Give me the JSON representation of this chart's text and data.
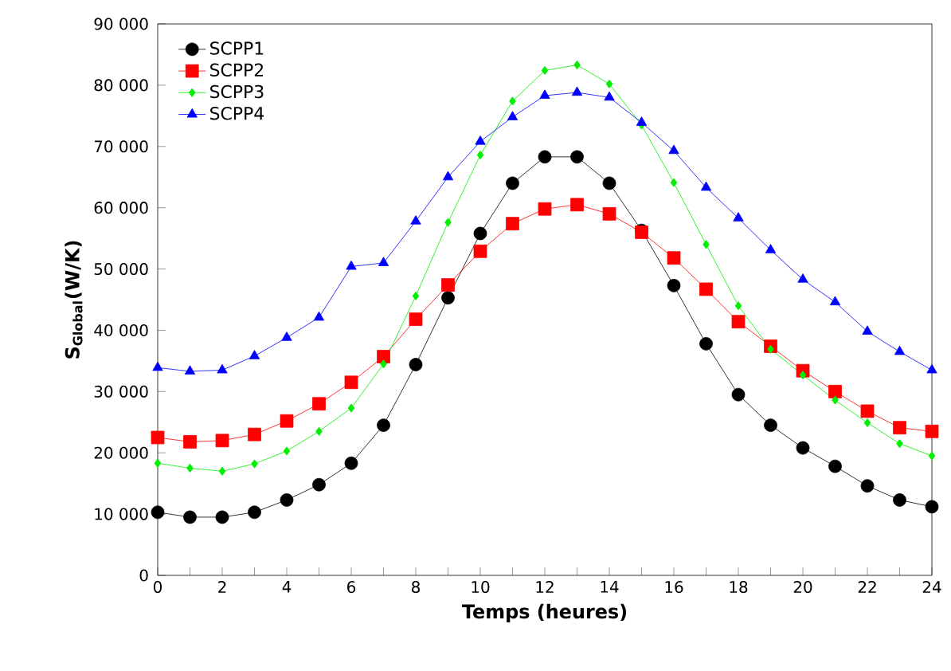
{
  "chart_data": {
    "type": "line",
    "xlabel": "Temps (heures)",
    "ylabel": "S$_{Global}$(W/K)",
    "x": [
      0,
      1,
      2,
      3,
      4,
      5,
      6,
      7,
      8,
      9,
      10,
      11,
      12,
      13,
      14,
      15,
      16,
      17,
      18,
      19,
      20,
      21,
      22,
      23,
      24
    ],
    "xlim": [
      0,
      24
    ],
    "xticks": [
      0,
      {
        "value": 1,
        "label": null
      },
      2,
      {
        "value": 3,
        "label": null
      },
      4,
      {
        "value": 5,
        "label": null
      },
      6,
      {
        "value": 7,
        "label": null
      },
      8,
      {
        "value": 9,
        "label": null
      },
      10,
      {
        "value": 11,
        "label": null
      },
      12,
      {
        "value": 13,
        "label": null
      },
      14,
      {
        "value": 15,
        "label": null
      },
      16,
      {
        "value": 17,
        "label": null
      },
      18,
      {
        "value": 19,
        "label": null
      },
      20,
      {
        "value": 21,
        "label": null
      },
      22,
      {
        "value": 23,
        "label": null
      },
      24
    ],
    "ylim": [
      0,
      90000
    ],
    "yticks": [
      0,
      {
        "value": 10000,
        "label": "10 000"
      },
      {
        "value": 20000,
        "label": "20 000"
      },
      {
        "value": 30000,
        "label": "30 000"
      },
      {
        "value": 40000,
        "label": "40 000"
      },
      {
        "value": 50000,
        "label": "50 000"
      },
      {
        "value": 60000,
        "label": "60 000"
      },
      {
        "value": 70000,
        "label": "70 000"
      },
      {
        "value": 80000,
        "label": "80 000"
      },
      {
        "value": 90000,
        "label": "90 000"
      }
    ],
    "grid": false,
    "legend": "top left",
    "line_style": "solid",
    "series": [
      {
        "name": "SCPP1",
        "color": "#000000",
        "marker": "circle",
        "values": [
          10300,
          9500,
          9500,
          10300,
          12300,
          14800,
          18300,
          24500,
          34400,
          45300,
          55800,
          64000,
          68300,
          68300,
          64000,
          56300,
          47300,
          37800,
          29500,
          24500,
          20800,
          17800,
          14600,
          12300,
          11200
        ]
      },
      {
        "name": "SCPP2",
        "color": "#ff0000",
        "marker": "square",
        "values": [
          22500,
          21800,
          22000,
          23000,
          25200,
          28000,
          31500,
          35700,
          41800,
          47400,
          52900,
          57400,
          59800,
          60500,
          59000,
          56000,
          51800,
          46700,
          41400,
          37400,
          33400,
          30000,
          26800,
          24100,
          23500
        ]
      },
      {
        "name": "SCPP3",
        "color": "#00ee00",
        "marker": "diamond",
        "values": [
          18300,
          17500,
          17000,
          18200,
          20300,
          23500,
          27300,
          34500,
          45600,
          57600,
          68600,
          77400,
          82400,
          83300,
          80200,
          73500,
          64100,
          54000,
          44000,
          36900,
          32700,
          28600,
          24900,
          21500,
          19500
        ]
      },
      {
        "name": "SCPP4",
        "color": "#0000ff",
        "marker": "triangle",
        "values": [
          33900,
          33300,
          33500,
          35800,
          38800,
          42100,
          50400,
          51000,
          57800,
          65000,
          70800,
          74800,
          78300,
          78800,
          78000,
          73900,
          69300,
          63300,
          58300,
          53100,
          48300,
          44600,
          39800,
          36500,
          33500
        ]
      }
    ]
  }
}
